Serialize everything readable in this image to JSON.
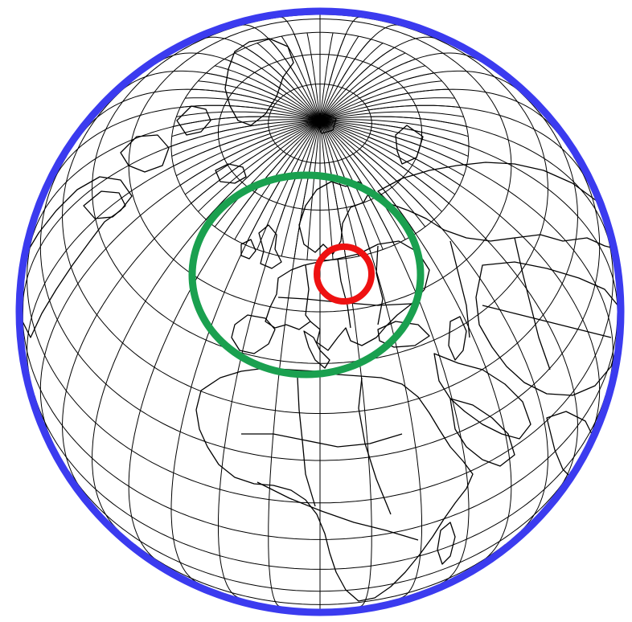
{
  "map": {
    "projection": "orthographic",
    "center_lon": 20,
    "center_lat": 50,
    "graticule_step_deg": 10,
    "colors": {
      "background": "#ffffff",
      "graticule": "#000000",
      "coastline": "#000000",
      "outer_ring": "#3b3bef",
      "middle_ring": "#1aa04f",
      "inner_ring": "#ee1111"
    },
    "rings": [
      {
        "id": "outer",
        "color": "#3b3bef",
        "meaning": "globe-limb"
      },
      {
        "id": "middle",
        "color": "#1aa04f"
      },
      {
        "id": "inner",
        "color": "#ee1111"
      }
    ]
  }
}
